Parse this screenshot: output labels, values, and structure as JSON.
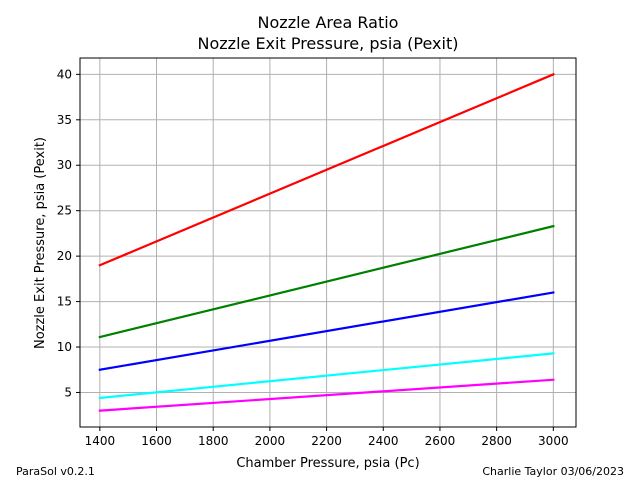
{
  "footer": {
    "left": "ParaSol v0.2.1",
    "right": "Charlie Taylor 03/06/2023"
  },
  "chart_data": {
    "type": "line",
    "title": "Nozzle Area Ratio",
    "subtitle": "Nozzle Exit Pressure, psia (Pexit)",
    "xlabel": "Chamber Pressure, psia (Pc)",
    "ylabel": "Nozzle Exit Pressure, psia (Pexit)",
    "xlim": [
      1330,
      3080
    ],
    "ylim": [
      1.2,
      41.8
    ],
    "x_ticks": [
      1400,
      1600,
      1800,
      2000,
      2200,
      2400,
      2600,
      2800,
      3000
    ],
    "y_ticks": [
      5,
      10,
      15,
      20,
      25,
      30,
      35,
      40
    ],
    "grid": true,
    "x": [
      1400,
      3000
    ],
    "series": [
      {
        "color": "#ff0000",
        "values": [
          19.0,
          40.0
        ]
      },
      {
        "color": "#008000",
        "values": [
          11.1,
          23.3
        ]
      },
      {
        "color": "#0000ff",
        "values": [
          7.5,
          16.0
        ]
      },
      {
        "color": "#00ffff",
        "values": [
          4.4,
          9.3
        ]
      },
      {
        "color": "#ff00ff",
        "values": [
          3.0,
          6.4
        ]
      }
    ]
  }
}
